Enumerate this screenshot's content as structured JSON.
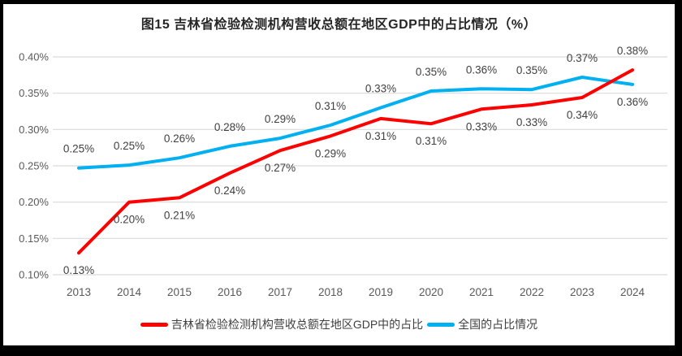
{
  "chart_data": {
    "type": "line",
    "title": "图15 吉林省检验检测机构营收总额在地区GDP中的占比情况（%）",
    "x_labels": [
      "2013",
      "2014",
      "2015",
      "2016",
      "2017",
      "2018",
      "2019",
      "2020",
      "2021",
      "2022",
      "2023",
      "2024"
    ],
    "yticks": [
      {
        "label": "0.40%",
        "value": 0.4
      },
      {
        "label": "0.35%",
        "value": 0.35
      },
      {
        "label": "0.30%",
        "value": 0.3
      },
      {
        "label": "0.25%",
        "value": 0.25
      },
      {
        "label": "0.20%",
        "value": 0.2
      },
      {
        "label": "0.15%",
        "value": 0.15
      },
      {
        "label": "0.10%",
        "value": 0.1
      }
    ],
    "ylim": [
      0.1,
      0.4
    ],
    "grid": "horizontal-only",
    "legend_position": "bottom",
    "series": [
      {
        "slug": "jilin-gdp-share",
        "name": "吉林省检验检测机构营收总额在地区GDP中的占比",
        "color": "#ff0000",
        "values": [
          0.13,
          0.2,
          0.21,
          0.24,
          0.27,
          0.29,
          0.31,
          0.31,
          0.33,
          0.33,
          0.34,
          0.38
        ],
        "plot_values": [
          0.13,
          0.2,
          0.206,
          0.24,
          0.271,
          0.291,
          0.315,
          0.308,
          0.328,
          0.334,
          0.344,
          0.382
        ],
        "point_labels": [
          "0.13%",
          "0.20%",
          "0.21%",
          "0.24%",
          "0.27%",
          "0.29%",
          "0.31%",
          "0.31%",
          "0.33%",
          "0.33%",
          "0.34%",
          "0.38%"
        ],
        "label_side": [
          "below",
          "below",
          "below",
          "below",
          "below",
          "below",
          "below",
          "below",
          "below",
          "below",
          "below",
          "above"
        ]
      },
      {
        "slug": "national-share",
        "name": "全国的占比情况",
        "color": "#00b0f0",
        "values": [
          0.25,
          0.25,
          0.26,
          0.28,
          0.29,
          0.31,
          0.33,
          0.35,
          0.36,
          0.35,
          0.37,
          0.36
        ],
        "plot_values": [
          0.247,
          0.251,
          0.261,
          0.277,
          0.288,
          0.306,
          0.33,
          0.353,
          0.356,
          0.355,
          0.372,
          0.362
        ],
        "point_labels": [
          "0.25%",
          "0.25%",
          "0.26%",
          "0.28%",
          "0.29%",
          "0.31%",
          "0.33%",
          "0.35%",
          "0.36%",
          "0.35%",
          "0.37%",
          "0.36%"
        ],
        "label_side": [
          "above",
          "above",
          "above",
          "above",
          "above",
          "above",
          "above",
          "above",
          "above",
          "above",
          "above",
          "below"
        ]
      }
    ],
    "colors": {
      "gridline": "#d9d9d9",
      "axis_text": "#595959",
      "data_label_text": "#404040",
      "title_text": "#262626",
      "panel_background": "#ffffff",
      "frame_background": "#000000"
    }
  }
}
